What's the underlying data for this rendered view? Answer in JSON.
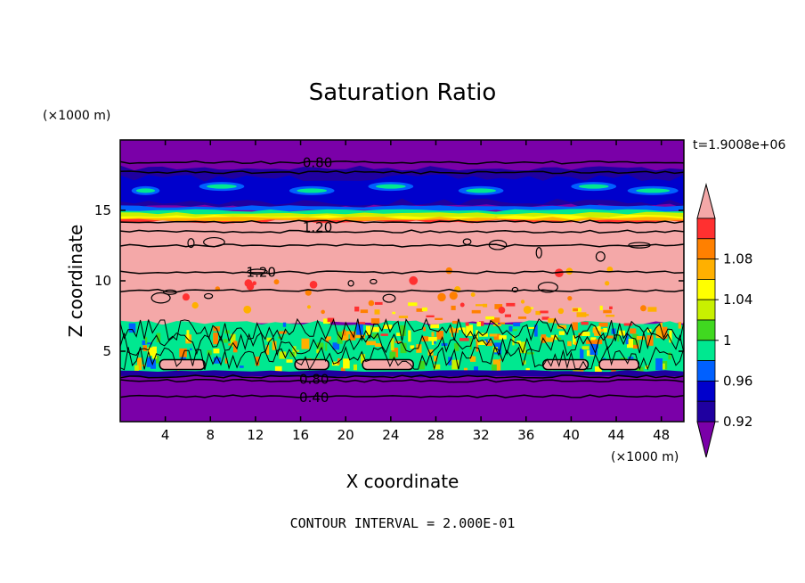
{
  "chart_data": {
    "type": "heatmap",
    "title": "Saturation Ratio",
    "xlabel": "X coordinate",
    "ylabel": "Z coordinate",
    "x_unit": "(×1000 m)",
    "y_unit": "(×1000 m)",
    "time_label": "t=1.9008e+06",
    "footer": "CONTOUR INTERVAL = 2.000E-01",
    "xlim": [
      0,
      50
    ],
    "ylim": [
      0,
      20
    ],
    "x_ticks": [
      4,
      8,
      12,
      16,
      20,
      24,
      28,
      32,
      36,
      40,
      44,
      48
    ],
    "y_ticks": [
      5,
      10,
      15
    ],
    "contour_labels": [
      {
        "text": "0.80",
        "x": 17.5,
        "y": 18.4
      },
      {
        "text": "1.20",
        "x": 17.5,
        "y": 13.8
      },
      {
        "text": "1.20",
        "x": 12.5,
        "y": 10.6
      },
      {
        "text": "0.80",
        "x": 17.2,
        "y": 3.0
      },
      {
        "text": "0.40",
        "x": 17.2,
        "y": 1.7
      }
    ],
    "colorbar": {
      "tick_labels": [
        "0.92",
        "0.96",
        "1",
        "1.04",
        "1.08"
      ],
      "levels": [
        0.92,
        0.94,
        0.96,
        0.98,
        1.0,
        1.02,
        1.04,
        1.06,
        1.08,
        1.1
      ],
      "colors": [
        "#7a00a8",
        "#1f00a0",
        "#0000cc",
        "#0060ff",
        "#00e890",
        "#40d820",
        "#c8f000",
        "#ffff00",
        "#ffb000",
        "#ff8000",
        "#ff3030",
        "#f4a8a8"
      ]
    },
    "bands": [
      {
        "z": [
          18.5,
          20.0
        ],
        "value": "below 0.92"
      },
      {
        "z": [
          16.0,
          17.5
        ],
        "value": "0.92-0.98"
      },
      {
        "z": [
          14.2,
          15.2
        ],
        "value": "1.0-1.1"
      },
      {
        "z": [
          7.0,
          14.2
        ],
        "value": "above 1.1"
      },
      {
        "z": [
          3.5,
          7.0
        ],
        "value": "0.96-1.1"
      },
      {
        "z": [
          0.0,
          3.5
        ],
        "value": "below 0.92"
      }
    ]
  }
}
